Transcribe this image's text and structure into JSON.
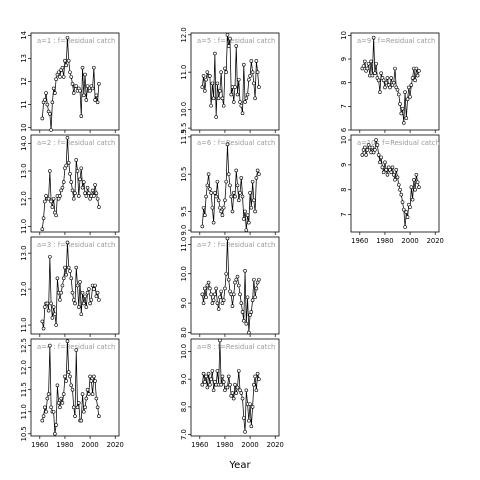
{
  "chart_data": {
    "type": "line",
    "xlabel": "Year",
    "xticks": [
      1960,
      1980,
      2000,
      2020
    ],
    "xlim": [
      1953,
      2023
    ],
    "x_start": 1962,
    "panels": [
      {
        "label": "a=1 : f=Residual catch",
        "col": 0,
        "row": 0,
        "ylim": [
          9.9,
          14.1
        ],
        "yticks": [
          10,
          11,
          12,
          13,
          14
        ],
        "tick_labels": [
          "10",
          "11",
          "12",
          "13",
          "14"
        ],
        "values": [
          10.4,
          11.1,
          11.2,
          11.5,
          11.0,
          10.7,
          10.6,
          9.9,
          11.1,
          11.7,
          11.5,
          12.1,
          12.3,
          12.4,
          12.2,
          12.5,
          12.6,
          12.2,
          12.9,
          12.7,
          13.9,
          12.9,
          12.4,
          12.2,
          11.9,
          11.5,
          11.8,
          11.8,
          11.6,
          11.7,
          11.6,
          10.5,
          12.6,
          11.4,
          12.3,
          11.2,
          11.8,
          11.6,
          11.6,
          11.8,
          11.7,
          12.6,
          11.2,
          11.4,
          11.1,
          11.9
        ]
      },
      {
        "label": "a=2 : f=Residual catch",
        "col": 0,
        "row": 1,
        "ylim": [
          10.8,
          14.3
        ],
        "yticks": [
          11,
          12,
          13,
          14
        ],
        "tick_labels": [
          "11.0",
          "12.0",
          "13.0",
          "14.0"
        ],
        "values": [
          10.9,
          11.3,
          11.9,
          12.1,
          12.0,
          12.0,
          13.0,
          11.9,
          11.7,
          12.0,
          11.5,
          11.4,
          12.1,
          12.0,
          12.1,
          12.3,
          12.4,
          12.6,
          13.1,
          13.2,
          14.2,
          13.3,
          12.9,
          12.6,
          12.3,
          12.0,
          12.2,
          13.4,
          13.0,
          12.1,
          12.7,
          13.1,
          12.4,
          12.6,
          12.2,
          12.1,
          12.4,
          12.2,
          12.0,
          12.1,
          12.3,
          12.1,
          12.5,
          12.2,
          12.0,
          11.7
        ]
      },
      {
        "label": "a=3 : f=Residual catch",
        "col": 0,
        "row": 2,
        "ylim": [
          10.75,
          13.45
        ],
        "yticks": [
          11,
          12,
          13
        ],
        "tick_labels": [
          "11.0",
          "12.0",
          "13.0"
        ],
        "values": [
          11.1,
          10.9,
          11.5,
          11.6,
          11.6,
          11.4,
          12.9,
          11.6,
          11.2,
          11.5,
          11.3,
          11.0,
          12.3,
          11.9,
          11.7,
          11.9,
          12.1,
          12.3,
          12.6,
          12.4,
          13.3,
          12.6,
          12.5,
          12.3,
          11.9,
          11.7,
          11.6,
          12.6,
          12.1,
          11.5,
          12.2,
          11.3,
          11.9,
          11.6,
          11.8,
          11.5,
          11.9,
          12.0,
          11.6,
          11.7,
          12.1,
          12.0,
          12.1,
          11.8,
          11.9,
          11.7
        ]
      },
      {
        "label": "a=4 : f=Residual catch",
        "col": 0,
        "row": 3,
        "ylim": [
          10.45,
          12.65
        ],
        "yticks": [
          10.5,
          11,
          11.5,
          12,
          12.5
        ],
        "tick_labels": [
          "10.5",
          "11.0",
          "11.5",
          "12.0",
          "12.5"
        ],
        "values": [
          10.8,
          10.9,
          11.1,
          11.0,
          11.3,
          11.4,
          12.5,
          11.1,
          11.0,
          11.0,
          10.5,
          10.7,
          11.6,
          11.2,
          11.1,
          11.3,
          11.2,
          11.4,
          11.8,
          11.7,
          12.6,
          11.9,
          11.8,
          11.6,
          11.5,
          11.1,
          10.9,
          12.4,
          11.1,
          11.2,
          10.8,
          10.8,
          11.4,
          11.0,
          11.1,
          11.3,
          11.5,
          11.4,
          11.8,
          11.7,
          11.4,
          11.8,
          11.7,
          11.3,
          11.1,
          10.9
        ]
      },
      {
        "label": "a=5 : f=Residual catch",
        "col": 1,
        "row": 0,
        "ylim": [
          9.45,
          12.05
        ],
        "yticks": [
          9.5,
          10,
          11,
          12
        ],
        "tick_labels": [
          "9.5",
          "10.0",
          "11.0",
          "12.0"
        ],
        "values": [
          10.6,
          10.9,
          10.5,
          10.8,
          11.0,
          10.9,
          10.9,
          10.1,
          10.7,
          10.3,
          11.5,
          9.8,
          10.7,
          10.3,
          10.5,
          11.0,
          10.3,
          10.1,
          11.1,
          11.0,
          12.0,
          11.7,
          11.9,
          10.4,
          10.6,
          10.2,
          10.6,
          11.7,
          10.4,
          10.8,
          10.2,
          10.1,
          9.9,
          11.2,
          10.2,
          10.3,
          10.4,
          10.8,
          10.9,
          11.3,
          11.0,
          10.7,
          10.3,
          11.3,
          11.0,
          10.6
        ]
      },
      {
        "label": "a=6 : f=Residual catch",
        "col": 1,
        "row": 1,
        "ylim": [
          8.95,
          11.55
        ],
        "yticks": [
          9,
          9.5,
          10.5,
          11.5
        ],
        "tick_labels": [
          "9.0",
          "9.5",
          "10.5",
          "11.5"
        ],
        "values": [
          9.1,
          9.6,
          9.4,
          9.9,
          10.2,
          10.5,
          10.1,
          10.0,
          9.6,
          9.2,
          10.0,
          9.9,
          10.3,
          9.8,
          9.6,
          9.5,
          9.4,
          9.6,
          9.8,
          10.3,
          11.3,
          10.5,
          10.2,
          9.9,
          9.5,
          10.0,
          9.9,
          10.6,
          10.2,
          9.8,
          10.0,
          10.4,
          9.9,
          9.3,
          9.5,
          9.0,
          9.4,
          9.2,
          10.0,
          9.6,
          10.3,
          9.8,
          9.5,
          10.4,
          10.6,
          10.5
        ]
      },
      {
        "label": "a=7 : f=Residual catch",
        "col": 1,
        "row": 2,
        "ylim": [
          7.95,
          11.25
        ],
        "yticks": [
          8,
          9,
          10,
          11
        ],
        "tick_labels": [
          "8.0",
          "9.0",
          "10.0",
          "11.0"
        ],
        "values": [
          9.3,
          9.0,
          9.5,
          9.2,
          9.6,
          9.7,
          9.5,
          9.3,
          9.0,
          9.1,
          9.3,
          9.5,
          9.0,
          8.8,
          9.2,
          9.4,
          9.0,
          9.1,
          9.5,
          10.0,
          11.2,
          9.8,
          9.4,
          9.3,
          8.9,
          9.3,
          9.7,
          9.8,
          9.9,
          9.6,
          9.3,
          9.0,
          8.7,
          8.4,
          10.1,
          8.3,
          9.2,
          8.0,
          8.6,
          8.7,
          9.1,
          9.8,
          9.2,
          9.5,
          9.7,
          9.8
        ]
      },
      {
        "label": "a=8 : f=Residual catch",
        "col": 1,
        "row": 3,
        "ylim": [
          6.95,
          10.45
        ],
        "yticks": [
          7,
          8,
          9,
          10
        ],
        "tick_labels": [
          "7.0",
          "8.0",
          "9.0",
          "10.0"
        ],
        "values": [
          8.8,
          9.2,
          8.9,
          9.1,
          8.7,
          9.2,
          8.8,
          9.0,
          9.3,
          8.6,
          8.9,
          8.8,
          9.3,
          8.8,
          10.4,
          8.8,
          9.1,
          8.9,
          8.6,
          8.7,
          8.7,
          9.1,
          8.8,
          8.4,
          8.5,
          8.3,
          8.8,
          8.5,
          8.7,
          9.3,
          8.6,
          8.5,
          8.3,
          7.6,
          7.1,
          8.6,
          8.1,
          7.5,
          8.1,
          7.3,
          8.0,
          8.8,
          9.1,
          8.6,
          9.2,
          9.0
        ]
      },
      {
        "label": "a=9 : f=Residual catch",
        "col": 2,
        "row": 0,
        "ylim": [
          6,
          10.1
        ],
        "yticks": [
          6,
          7,
          8,
          9,
          10
        ],
        "tick_labels": [
          "6",
          "7",
          "8",
          "9",
          "10"
        ],
        "values": [
          8.6,
          8.7,
          8.9,
          8.5,
          8.6,
          8.8,
          8.3,
          8.9,
          8.3,
          9.9,
          8.4,
          8.8,
          8.2,
          8.1,
          7.6,
          8.4,
          8.2,
          8.1,
          7.8,
          8.0,
          8.2,
          7.9,
          7.8,
          8.2,
          7.9,
          8.0,
          8.6,
          7.8,
          7.7,
          7.5,
          7.1,
          6.7,
          6.9,
          6.3,
          7.6,
          6.5,
          7.3,
          7.8,
          7.4,
          7.9,
          8.2,
          8.6,
          8.1,
          8.6,
          8.3,
          8.5
        ]
      },
      {
        "label": "a=10 : f=Residual catch",
        "col": 2,
        "row": 1,
        "ylim": [
          6.3,
          10.2
        ],
        "yticks": [
          7,
          8,
          9,
          10
        ],
        "tick_labels": [
          "7",
          "8",
          "9",
          "10"
        ],
        "values": [
          9.4,
          9.6,
          9.7,
          9.4,
          9.6,
          9.8,
          9.7,
          9.5,
          9.7,
          9.5,
          9.6,
          10.0,
          9.8,
          9.4,
          9.1,
          9.3,
          8.9,
          8.7,
          9.1,
          8.8,
          8.6,
          8.9,
          8.8,
          8.7,
          8.9,
          8.6,
          8.4,
          8.8,
          8.5,
          8.2,
          8.0,
          7.8,
          7.5,
          7.2,
          6.5,
          7.1,
          6.9,
          7.4,
          7.3,
          8.1,
          7.6,
          8.4,
          8.0,
          8.6,
          8.3,
          8.1
        ]
      }
    ]
  }
}
